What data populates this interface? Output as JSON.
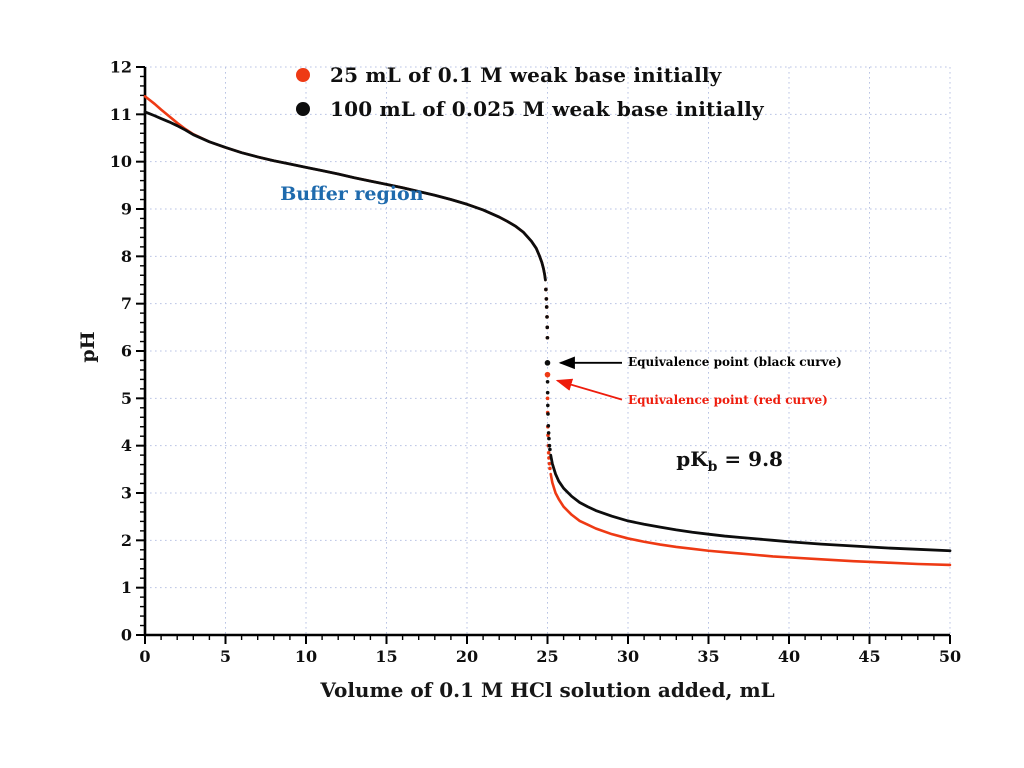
{
  "chart_data": {
    "type": "line",
    "title": "",
    "xlabel": "Volume of 0.1 M HCl solution added, mL",
    "ylabel": "pH",
    "xlim": [
      0,
      50
    ],
    "ylim": [
      0,
      12
    ],
    "x_major_tick": 5,
    "x_minor_tick": 1,
    "y_major_tick": 1,
    "y_minor_tick": 0.2,
    "x_tick_labels": [
      "0",
      "5",
      "10",
      "15",
      "20",
      "25",
      "30",
      "35",
      "40",
      "45",
      "50"
    ],
    "y_tick_labels": [
      "0",
      "1",
      "2",
      "3",
      "4",
      "5",
      "6",
      "7",
      "8",
      "9",
      "10",
      "11",
      "12"
    ],
    "grid": {
      "show": true,
      "color": "#b9c3e4",
      "style": "dotted"
    },
    "legend_position": "top-center",
    "dotted_segment_x_range": [
      24.88,
      25.17
    ],
    "series": [
      {
        "name": "25 mL of 0.1 M weak base initially",
        "color": "#ee3a14",
        "points": [
          [
            0,
            11.38
          ],
          [
            0.3,
            11.3
          ],
          [
            0.6,
            11.22
          ],
          [
            1,
            11.1
          ],
          [
            1.5,
            10.96
          ],
          [
            2,
            10.82
          ],
          [
            2.5,
            10.69
          ],
          [
            3,
            10.58
          ],
          [
            4,
            10.42
          ],
          [
            5,
            10.3
          ],
          [
            6,
            10.19
          ],
          [
            7,
            10.1
          ],
          [
            8,
            10.02
          ],
          [
            9,
            9.95
          ],
          [
            10,
            9.88
          ],
          [
            11,
            9.81
          ],
          [
            12,
            9.74
          ],
          [
            12.5,
            9.7
          ],
          [
            13,
            9.66
          ],
          [
            14,
            9.59
          ],
          [
            15,
            9.52
          ],
          [
            16,
            9.45
          ],
          [
            17,
            9.37
          ],
          [
            18,
            9.29
          ],
          [
            19,
            9.2
          ],
          [
            20,
            9.1
          ],
          [
            21,
            8.98
          ],
          [
            22,
            8.83
          ],
          [
            22.5,
            8.74
          ],
          [
            23,
            8.64
          ],
          [
            23.5,
            8.51
          ],
          [
            24,
            8.32
          ],
          [
            24.3,
            8.17
          ],
          [
            24.5,
            8.01
          ],
          [
            24.65,
            7.87
          ],
          [
            24.75,
            7.74
          ],
          [
            24.82,
            7.62
          ],
          [
            24.87,
            7.5
          ],
          [
            24.9,
            7.3
          ],
          [
            24.93,
            7.1
          ],
          [
            24.95,
            6.93
          ],
          [
            24.97,
            6.72
          ],
          [
            24.985,
            6.5
          ],
          [
            24.995,
            6.28
          ],
          [
            25,
            5.5
          ],
          [
            25.005,
            5.0
          ],
          [
            25.01,
            4.7
          ],
          [
            25.02,
            4.4
          ],
          [
            25.03,
            4.22
          ],
          [
            25.05,
            4.0
          ],
          [
            25.07,
            3.85
          ],
          [
            25.09,
            3.74
          ],
          [
            25.12,
            3.62
          ],
          [
            25.15,
            3.52
          ],
          [
            25.2,
            3.4
          ],
          [
            25.3,
            3.22
          ],
          [
            25.5,
            3.0
          ],
          [
            25.7,
            2.87
          ],
          [
            26,
            2.71
          ],
          [
            26.5,
            2.54
          ],
          [
            27,
            2.41
          ],
          [
            27.5,
            2.33
          ],
          [
            28,
            2.25
          ],
          [
            29,
            2.13
          ],
          [
            30,
            2.04
          ],
          [
            31,
            1.97
          ],
          [
            32,
            1.91
          ],
          [
            33,
            1.86
          ],
          [
            34,
            1.82
          ],
          [
            35,
            1.78
          ],
          [
            36,
            1.75
          ],
          [
            37,
            1.72
          ],
          [
            38,
            1.69
          ],
          [
            39,
            1.66
          ],
          [
            40,
            1.64
          ],
          [
            42,
            1.6
          ],
          [
            44,
            1.56
          ],
          [
            46,
            1.53
          ],
          [
            48,
            1.5
          ],
          [
            50,
            1.48
          ]
        ]
      },
      {
        "name": "100 mL of 0.025 M weak base initially",
        "color": "#0d0d0d",
        "points": [
          [
            0,
            11.05
          ],
          [
            0.3,
            11.01
          ],
          [
            0.6,
            10.97
          ],
          [
            1,
            10.91
          ],
          [
            1.5,
            10.84
          ],
          [
            2,
            10.76
          ],
          [
            2.5,
            10.67
          ],
          [
            3,
            10.57
          ],
          [
            4,
            10.42
          ],
          [
            5,
            10.3
          ],
          [
            6,
            10.19
          ],
          [
            7,
            10.1
          ],
          [
            8,
            10.02
          ],
          [
            9,
            9.95
          ],
          [
            10,
            9.88
          ],
          [
            11,
            9.81
          ],
          [
            12,
            9.74
          ],
          [
            12.5,
            9.7
          ],
          [
            13,
            9.66
          ],
          [
            14,
            9.59
          ],
          [
            15,
            9.52
          ],
          [
            16,
            9.45
          ],
          [
            17,
            9.37
          ],
          [
            18,
            9.29
          ],
          [
            19,
            9.2
          ],
          [
            20,
            9.1
          ],
          [
            21,
            8.98
          ],
          [
            22,
            8.83
          ],
          [
            22.5,
            8.74
          ],
          [
            23,
            8.64
          ],
          [
            23.5,
            8.51
          ],
          [
            24,
            8.32
          ],
          [
            24.3,
            8.17
          ],
          [
            24.5,
            8.01
          ],
          [
            24.65,
            7.87
          ],
          [
            24.75,
            7.74
          ],
          [
            24.82,
            7.62
          ],
          [
            24.87,
            7.5
          ],
          [
            24.9,
            7.3
          ],
          [
            24.93,
            7.1
          ],
          [
            24.95,
            6.93
          ],
          [
            24.97,
            6.72
          ],
          [
            24.985,
            6.5
          ],
          [
            24.995,
            6.28
          ],
          [
            25,
            5.75
          ],
          [
            25.005,
            5.35
          ],
          [
            25.01,
            5.12
          ],
          [
            25.02,
            4.85
          ],
          [
            25.03,
            4.67
          ],
          [
            25.05,
            4.42
          ],
          [
            25.07,
            4.27
          ],
          [
            25.09,
            4.15
          ],
          [
            25.12,
            4.0
          ],
          [
            25.15,
            3.92
          ],
          [
            25.2,
            3.8
          ],
          [
            25.3,
            3.62
          ],
          [
            25.5,
            3.4
          ],
          [
            25.7,
            3.25
          ],
          [
            26,
            3.1
          ],
          [
            26.5,
            2.93
          ],
          [
            27,
            2.8
          ],
          [
            27.5,
            2.71
          ],
          [
            28,
            2.63
          ],
          [
            29,
            2.51
          ],
          [
            30,
            2.41
          ],
          [
            31,
            2.34
          ],
          [
            32,
            2.28
          ],
          [
            33,
            2.22
          ],
          [
            34,
            2.17
          ],
          [
            35,
            2.13
          ],
          [
            36,
            2.09
          ],
          [
            37,
            2.06
          ],
          [
            38,
            2.03
          ],
          [
            39,
            2.0
          ],
          [
            40,
            1.97
          ],
          [
            42,
            1.92
          ],
          [
            44,
            1.88
          ],
          [
            46,
            1.84
          ],
          [
            48,
            1.81
          ],
          [
            50,
            1.78
          ]
        ]
      }
    ],
    "equivalence_points": [
      {
        "series": "black",
        "x": 25,
        "y": 5.75
      },
      {
        "series": "red",
        "x": 25,
        "y": 5.5
      }
    ],
    "annotations": {
      "buffer_region": {
        "text": "Buffer region",
        "color": "#1e6aad",
        "x": 8.4,
        "y": 9.3
      },
      "pkb": {
        "prefix": "pK",
        "sub": "b",
        "suffix": " = 9.8",
        "x": 33,
        "y": 3.7
      },
      "equivalence_black": {
        "text": "Equivalence point (black curve)",
        "color": "#000000",
        "target_x": 25,
        "target_y": 5.75
      },
      "equivalence_red": {
        "text": "Equivalence point (red curve)",
        "color": "#ee1c0c",
        "target_x": 25,
        "target_y": 5.5
      }
    }
  }
}
